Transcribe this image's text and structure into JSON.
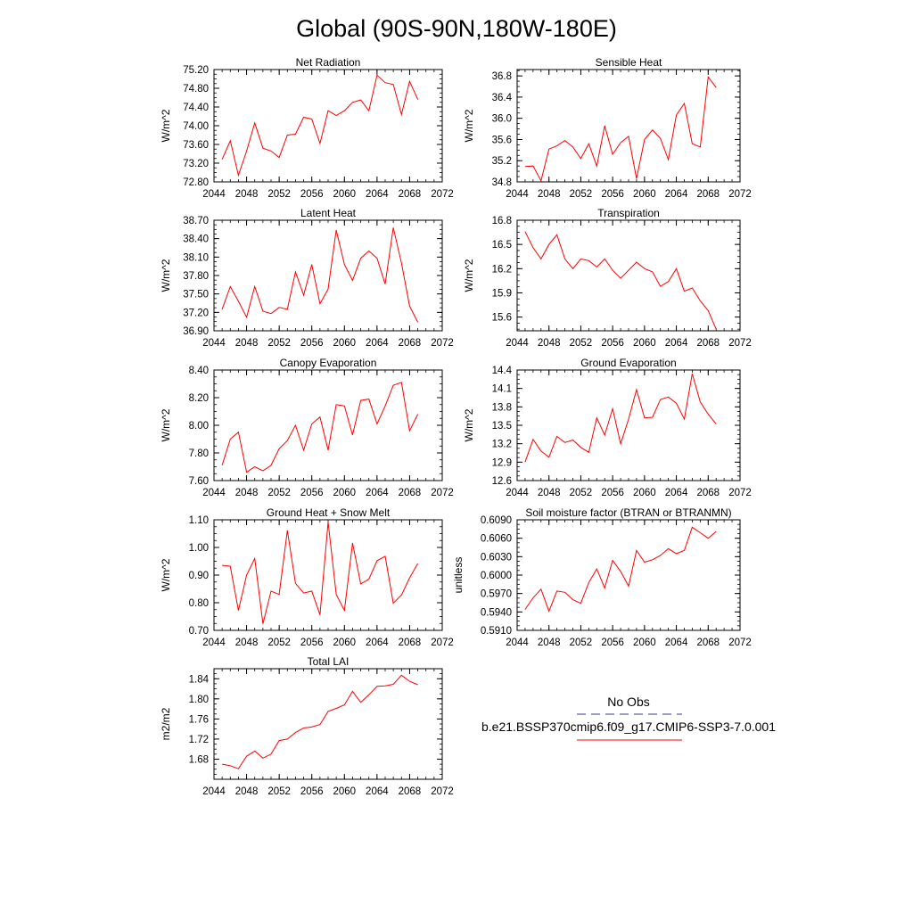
{
  "page_title": "Global (90S-90N,180W-180E)",
  "legend": {
    "obs_label": "No Obs",
    "model_label": "b.e21.BSSP370cmip6.f09_g17.CMIP6-SSP3-7.0.001",
    "obs_color": "#3333aa",
    "model_color": "#ff0000"
  },
  "chart_data": [
    {
      "type": "line",
      "title": "Net Radiation",
      "ylabel": "W/m^2",
      "xlim": [
        2044,
        2072
      ],
      "ylim": [
        72.8,
        75.2
      ],
      "x_ticks": [
        "2044",
        "2048",
        "2052",
        "2056",
        "2060",
        "2064",
        "2068",
        "2072"
      ],
      "y_ticks": [
        "72.80",
        "73.20",
        "73.60",
        "74.00",
        "74.40",
        "74.80",
        "75.20"
      ],
      "series": [
        {
          "color": "#ff0000",
          "x": [
            2045,
            2046,
            2047,
            2048,
            2049,
            2050,
            2051,
            2052,
            2053,
            2054,
            2055,
            2056,
            2057,
            2058,
            2059,
            2060,
            2061,
            2062,
            2063,
            2064,
            2065,
            2066,
            2067,
            2068,
            2069
          ],
          "values": [
            73.28,
            73.68,
            72.94,
            73.46,
            74.06,
            73.52,
            73.46,
            73.32,
            73.8,
            73.82,
            74.18,
            74.14,
            73.62,
            74.32,
            74.22,
            74.32,
            74.5,
            74.55,
            74.32,
            75.08,
            74.92,
            74.88,
            74.24,
            74.95,
            74.56
          ]
        }
      ]
    },
    {
      "type": "line",
      "title": "Sensible Heat",
      "ylabel": "W/m^2",
      "xlim": [
        2044,
        2072
      ],
      "ylim": [
        34.8,
        36.92
      ],
      "x_ticks": [
        "2044",
        "2048",
        "2052",
        "2056",
        "2060",
        "2064",
        "2068",
        "2072"
      ],
      "y_ticks": [
        "34.8",
        "35.2",
        "35.6",
        "36.0",
        "36.4",
        "36.8"
      ],
      "series": [
        {
          "color": "#ff0000",
          "x": [
            2045,
            2046,
            2047,
            2048,
            2049,
            2050,
            2051,
            2052,
            2053,
            2054,
            2055,
            2056,
            2057,
            2058,
            2059,
            2060,
            2061,
            2062,
            2063,
            2064,
            2065,
            2066,
            2067,
            2068,
            2069
          ],
          "values": [
            35.09,
            35.1,
            34.82,
            35.42,
            35.48,
            35.58,
            35.46,
            35.24,
            35.52,
            35.1,
            35.86,
            35.32,
            35.54,
            35.66,
            34.86,
            35.6,
            35.78,
            35.62,
            35.22,
            36.06,
            36.28,
            35.52,
            35.46,
            36.78,
            36.58
          ]
        }
      ]
    },
    {
      "type": "line",
      "title": "Latent Heat",
      "ylabel": "W/m^2",
      "xlim": [
        2044,
        2072
      ],
      "ylim": [
        36.9,
        38.7
      ],
      "x_ticks": [
        "2044",
        "2048",
        "2052",
        "2056",
        "2060",
        "2064",
        "2068",
        "2072"
      ],
      "y_ticks": [
        "36.90",
        "37.20",
        "37.50",
        "37.80",
        "38.10",
        "38.40",
        "38.70"
      ],
      "series": [
        {
          "color": "#ff0000",
          "x": [
            2045,
            2046,
            2047,
            2048,
            2049,
            2050,
            2051,
            2052,
            2053,
            2054,
            2055,
            2056,
            2057,
            2058,
            2059,
            2060,
            2061,
            2062,
            2063,
            2064,
            2065,
            2066,
            2067,
            2068,
            2069
          ],
          "values": [
            37.25,
            37.62,
            37.38,
            37.12,
            37.62,
            37.22,
            37.18,
            37.28,
            37.25,
            37.86,
            37.48,
            37.98,
            37.34,
            37.58,
            38.54,
            37.98,
            37.72,
            38.08,
            38.2,
            38.08,
            37.66,
            38.58,
            38.0,
            37.3,
            37.04
          ]
        }
      ]
    },
    {
      "type": "line",
      "title": "Transpiration",
      "ylabel": "W/m^2",
      "xlim": [
        2044,
        2072
      ],
      "ylim": [
        15.43,
        16.8
      ],
      "x_ticks": [
        "2044",
        "2048",
        "2052",
        "2056",
        "2060",
        "2064",
        "2068",
        "2072"
      ],
      "y_ticks": [
        "15.6",
        "15.9",
        "16.2",
        "16.5",
        "16.8"
      ],
      "series": [
        {
          "color": "#ff0000",
          "x": [
            2045,
            2046,
            2047,
            2048,
            2049,
            2050,
            2051,
            2052,
            2053,
            2054,
            2055,
            2056,
            2057,
            2058,
            2059,
            2060,
            2061,
            2062,
            2063,
            2064,
            2065,
            2066,
            2067,
            2068,
            2069
          ],
          "values": [
            16.66,
            16.46,
            16.32,
            16.5,
            16.62,
            16.32,
            16.2,
            16.32,
            16.3,
            16.22,
            16.32,
            16.18,
            16.08,
            16.18,
            16.28,
            16.2,
            16.16,
            15.98,
            16.04,
            16.2,
            15.92,
            15.96,
            15.8,
            15.68,
            15.45
          ]
        }
      ]
    },
    {
      "type": "line",
      "title": "Canopy Evaporation",
      "ylabel": "W/m^2",
      "xlim": [
        2044,
        2072
      ],
      "ylim": [
        7.6,
        8.4
      ],
      "x_ticks": [
        "2044",
        "2048",
        "2052",
        "2056",
        "2060",
        "2064",
        "2068",
        "2072"
      ],
      "y_ticks": [
        "7.60",
        "7.80",
        "8.00",
        "8.20",
        "8.40"
      ],
      "series": [
        {
          "color": "#ff0000",
          "x": [
            2045,
            2046,
            2047,
            2048,
            2049,
            2050,
            2051,
            2052,
            2053,
            2054,
            2055,
            2056,
            2057,
            2058,
            2059,
            2060,
            2061,
            2062,
            2063,
            2064,
            2065,
            2066,
            2067,
            2068,
            2069
          ],
          "values": [
            7.71,
            7.9,
            7.95,
            7.66,
            7.7,
            7.67,
            7.71,
            7.83,
            7.89,
            8.0,
            7.82,
            8.01,
            8.06,
            7.82,
            8.15,
            8.14,
            7.93,
            8.18,
            8.19,
            8.01,
            8.14,
            8.29,
            8.31,
            7.96,
            8.08
          ]
        }
      ]
    },
    {
      "type": "line",
      "title": "Ground Evaporation",
      "ylabel": "W/m^2",
      "xlim": [
        2044,
        2072
      ],
      "ylim": [
        12.6,
        14.4
      ],
      "x_ticks": [
        "2044",
        "2048",
        "2052",
        "2056",
        "2060",
        "2064",
        "2068",
        "2072"
      ],
      "y_ticks": [
        "12.6",
        "12.9",
        "13.2",
        "13.5",
        "13.8",
        "14.1",
        "14.4"
      ],
      "series": [
        {
          "color": "#ff0000",
          "x": [
            2045,
            2046,
            2047,
            2048,
            2049,
            2050,
            2051,
            2052,
            2053,
            2054,
            2055,
            2056,
            2057,
            2058,
            2059,
            2060,
            2061,
            2062,
            2063,
            2064,
            2065,
            2066,
            2067,
            2068,
            2069
          ],
          "values": [
            12.9,
            13.27,
            13.08,
            12.98,
            13.32,
            13.22,
            13.26,
            13.14,
            13.06,
            13.62,
            13.34,
            13.77,
            13.2,
            13.6,
            14.08,
            13.62,
            13.63,
            13.92,
            13.96,
            13.86,
            13.6,
            14.34,
            13.88,
            13.68,
            13.52
          ]
        }
      ]
    },
    {
      "type": "line",
      "title": "Ground Heat + Snow Melt",
      "ylabel": "W/m^2",
      "xlim": [
        2044,
        2072
      ],
      "ylim": [
        0.7,
        1.1
      ],
      "x_ticks": [
        "2044",
        "2048",
        "2052",
        "2056",
        "2060",
        "2064",
        "2068",
        "2072"
      ],
      "y_ticks": [
        "0.70",
        "0.80",
        "0.90",
        "1.00",
        "1.10"
      ],
      "series": [
        {
          "color": "#ff0000",
          "x": [
            2045,
            2046,
            2047,
            2048,
            2049,
            2050,
            2051,
            2052,
            2053,
            2054,
            2055,
            2056,
            2057,
            2058,
            2059,
            2060,
            2061,
            2062,
            2063,
            2064,
            2065,
            2066,
            2067,
            2068,
            2069
          ],
          "values": [
            0.935,
            0.932,
            0.772,
            0.9,
            0.96,
            0.724,
            0.842,
            0.83,
            1.062,
            0.87,
            0.835,
            0.842,
            0.756,
            1.092,
            0.83,
            0.772,
            1.016,
            0.868,
            0.885,
            0.952,
            0.968,
            0.798,
            0.828,
            0.89,
            0.942
          ]
        }
      ]
    },
    {
      "type": "line",
      "title": "Soil moisture factor (BTRAN or BTRANMN)",
      "ylabel": "unitless",
      "xlim": [
        2044,
        2072
      ],
      "ylim": [
        0.591,
        0.609
      ],
      "x_ticks": [
        "2044",
        "2048",
        "2052",
        "2056",
        "2060",
        "2064",
        "2068",
        "2072"
      ],
      "y_ticks": [
        "0.5910",
        "0.5940",
        "0.5970",
        "0.6000",
        "0.6030",
        "0.6060",
        "0.6090"
      ],
      "series": [
        {
          "color": "#ff0000",
          "x": [
            2045,
            2046,
            2047,
            2048,
            2049,
            2050,
            2051,
            2052,
            2053,
            2054,
            2055,
            2056,
            2057,
            2058,
            2059,
            2060,
            2061,
            2062,
            2063,
            2064,
            2065,
            2066,
            2067,
            2068,
            2069
          ],
          "values": [
            0.5944,
            0.5963,
            0.5977,
            0.5941,
            0.5974,
            0.5972,
            0.596,
            0.5954,
            0.5988,
            0.601,
            0.5979,
            0.6024,
            0.6006,
            0.5982,
            0.604,
            0.6021,
            0.6025,
            0.6032,
            0.6043,
            0.6035,
            0.604,
            0.6078,
            0.6069,
            0.606,
            0.6071
          ]
        }
      ]
    },
    {
      "type": "line",
      "title": "Total LAI",
      "ylabel": "m2/m2",
      "xlim": [
        2044,
        2072
      ],
      "ylim": [
        1.64,
        1.86
      ],
      "x_ticks": [
        "2044",
        "2048",
        "2052",
        "2056",
        "2060",
        "2064",
        "2068",
        "2072"
      ],
      "y_ticks": [
        "1.68",
        "1.72",
        "1.76",
        "1.80",
        "1.84"
      ],
      "series": [
        {
          "color": "#ff0000",
          "x": [
            2045,
            2046,
            2047,
            2048,
            2049,
            2050,
            2051,
            2052,
            2053,
            2054,
            2055,
            2056,
            2057,
            2058,
            2059,
            2060,
            2061,
            2062,
            2063,
            2064,
            2065,
            2066,
            2067,
            2068,
            2069
          ],
          "values": [
            1.67,
            1.667,
            1.661,
            1.686,
            1.696,
            1.682,
            1.69,
            1.717,
            1.72,
            1.733,
            1.742,
            1.744,
            1.749,
            1.775,
            1.781,
            1.788,
            1.815,
            1.793,
            1.808,
            1.825,
            1.826,
            1.829,
            1.847,
            1.835,
            1.828
          ]
        }
      ]
    }
  ]
}
